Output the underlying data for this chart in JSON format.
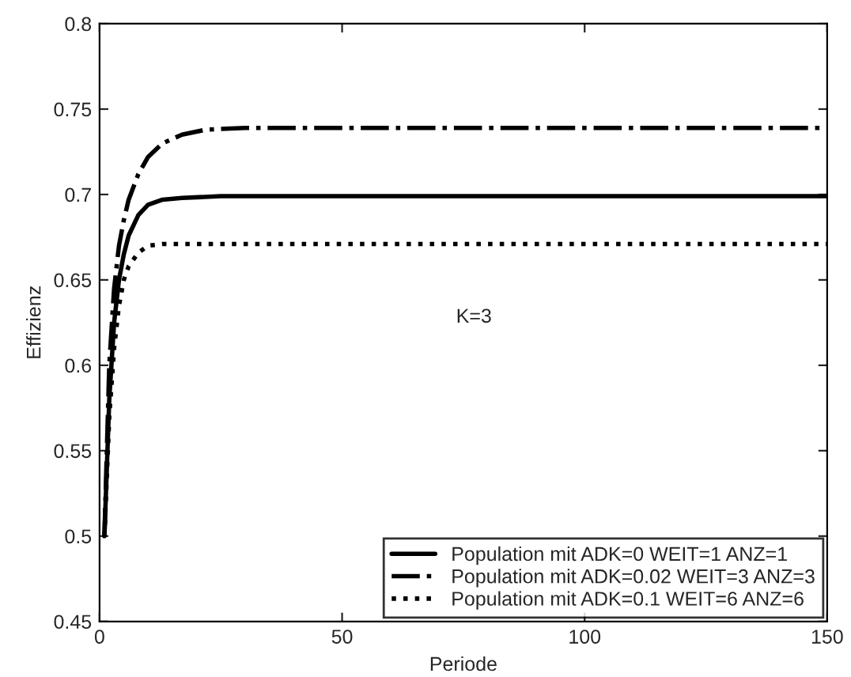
{
  "chart_data": {
    "type": "line",
    "xlabel": "Periode",
    "ylabel": "Effizienz",
    "annotations": [
      "K=3"
    ],
    "xlim": [
      0,
      150
    ],
    "xticks": [
      0,
      50,
      100,
      150
    ],
    "ylim": [
      0.45,
      0.8
    ],
    "yticks": [
      0.45,
      0.5,
      0.55,
      0.6,
      0.65,
      0.7,
      0.75,
      0.8
    ],
    "grid": false,
    "legend": "bottom right",
    "series": [
      {
        "name": "Population mit ADK=0 WEIT=1 ANZ=1",
        "color": "#000000",
        "line_style": "solid",
        "x": [
          1,
          2,
          3,
          4,
          5,
          6,
          8,
          10,
          13,
          17,
          25,
          150
        ],
        "values": [
          0.5,
          0.58,
          0.625,
          0.65,
          0.665,
          0.676,
          0.688,
          0.694,
          0.697,
          0.698,
          0.699,
          0.699
        ]
      },
      {
        "name": "Population mit ADK=0.02 WEIT=3 ANZ=3",
        "color": "#000000",
        "line_style": "dashdot",
        "x": [
          1,
          2,
          3,
          4,
          5,
          6,
          8,
          10,
          13,
          17,
          22,
          30,
          150
        ],
        "values": [
          0.5,
          0.6,
          0.645,
          0.67,
          0.685,
          0.697,
          0.712,
          0.722,
          0.73,
          0.735,
          0.738,
          0.739,
          0.739
        ]
      },
      {
        "name": "Population mit ADK=0.1 WEIT=6 ANZ=6",
        "color": "#000000",
        "line_style": "dotted",
        "x": [
          1,
          2,
          3,
          4,
          5,
          6,
          8,
          10,
          13,
          150
        ],
        "values": [
          0.5,
          0.57,
          0.61,
          0.635,
          0.65,
          0.658,
          0.666,
          0.67,
          0.671,
          0.671
        ]
      }
    ]
  }
}
